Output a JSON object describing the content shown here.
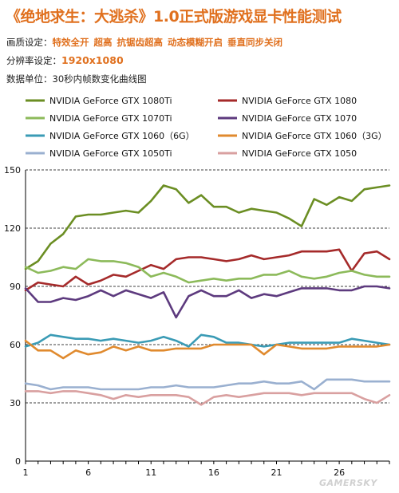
{
  "header": {
    "title": "《绝地求生：大逃杀》1.0正式版游戏显卡性能测试",
    "quality_label": "画质设定：",
    "quality_values": [
      "特效全开",
      "超高",
      "抗锯齿超高",
      "动态模糊开启",
      "垂直同步关闭"
    ],
    "resolution_label": "分辨率设定：",
    "resolution_value": "1920x1080",
    "unit_label": "数据单位：",
    "unit_value": "30秒内帧数变化曲线图"
  },
  "watermark": "GAMERSKY",
  "chart_data": {
    "type": "line",
    "title": "《绝地求生：大逃杀》1.0正式版游戏显卡性能测试",
    "xlabel": "",
    "ylabel": "",
    "xlim": [
      1,
      30
    ],
    "ylim": [
      0,
      150
    ],
    "x_ticks": [
      1,
      6,
      11,
      16,
      21,
      26
    ],
    "y_ticks": [
      0,
      30,
      60,
      90,
      120,
      150
    ],
    "grid": "horizontal-dashed",
    "legend_position": "top",
    "x": [
      1,
      2,
      3,
      4,
      5,
      6,
      7,
      8,
      9,
      10,
      11,
      12,
      13,
      14,
      15,
      16,
      17,
      18,
      19,
      20,
      21,
      22,
      23,
      24,
      25,
      26,
      27,
      28,
      29,
      30
    ],
    "series": [
      {
        "name": "NVIDIA GeForce GTX 1080Ti",
        "color": "#6b8e23",
        "values": [
          99,
          103,
          112,
          117,
          126,
          127,
          127,
          128,
          129,
          128,
          134,
          142,
          140,
          133,
          137,
          131,
          131,
          128,
          130,
          129,
          128,
          125,
          121,
          135,
          132,
          136,
          134,
          140,
          141,
          142
        ]
      },
      {
        "name": "NVIDIA GeForce GTX 1080",
        "color": "#a52a2a",
        "values": [
          88,
          92,
          91,
          90,
          95,
          91,
          93,
          96,
          95,
          98,
          101,
          99,
          104,
          105,
          105,
          104,
          103,
          104,
          106,
          104,
          105,
          106,
          108,
          108,
          108,
          109,
          98,
          107,
          108,
          104
        ]
      },
      {
        "name": "NVIDIA GeForce GTX 1070Ti",
        "color": "#8cba5a",
        "values": [
          100,
          97,
          98,
          100,
          99,
          104,
          103,
          103,
          102,
          100,
          95,
          97,
          95,
          92,
          93,
          94,
          93,
          94,
          94,
          96,
          96,
          98,
          95,
          94,
          95,
          97,
          98,
          96,
          95,
          95
        ]
      },
      {
        "name": "NVIDIA GeForce GTX 1070",
        "color": "#5d3a7e",
        "values": [
          89,
          82,
          82,
          84,
          83,
          85,
          88,
          85,
          88,
          86,
          84,
          87,
          74,
          85,
          88,
          85,
          85,
          88,
          84,
          86,
          85,
          87,
          89,
          89,
          89,
          88,
          88,
          90,
          90,
          89
        ]
      },
      {
        "name": "NVIDIA GeForce GTX 1060（6G）",
        "color": "#3a9bb5",
        "values": [
          59,
          61,
          65,
          64,
          63,
          63,
          62,
          63,
          62,
          61,
          62,
          64,
          62,
          59,
          65,
          64,
          61,
          61,
          60,
          59,
          60,
          61,
          61,
          61,
          61,
          61,
          63,
          62,
          61,
          60
        ]
      },
      {
        "name": "NVIDIA GeForce GTX 1060（3G）",
        "color": "#e08a2e",
        "values": [
          62,
          57,
          57,
          53,
          57,
          55,
          56,
          59,
          57,
          59,
          57,
          57,
          58,
          58,
          58,
          60,
          60,
          60,
          60,
          55,
          60,
          59,
          58,
          58,
          58,
          59,
          59,
          59,
          59,
          60
        ]
      },
      {
        "name": "NVIDIA GeForce GTX 1050Ti",
        "color": "#9ab0d0",
        "values": [
          40,
          39,
          37,
          38,
          38,
          38,
          37,
          37,
          37,
          37,
          38,
          38,
          39,
          38,
          38,
          38,
          39,
          40,
          40,
          41,
          40,
          40,
          41,
          37,
          42,
          42,
          42,
          41,
          41,
          41
        ]
      },
      {
        "name": "NVIDIA GeForce GTX 1050",
        "color": "#d9a0a0",
        "values": [
          36,
          36,
          35,
          36,
          36,
          35,
          34,
          32,
          34,
          33,
          34,
          34,
          34,
          33,
          29,
          33,
          34,
          33,
          34,
          35,
          35,
          35,
          34,
          35,
          35,
          35,
          35,
          32,
          30,
          34
        ]
      }
    ]
  }
}
